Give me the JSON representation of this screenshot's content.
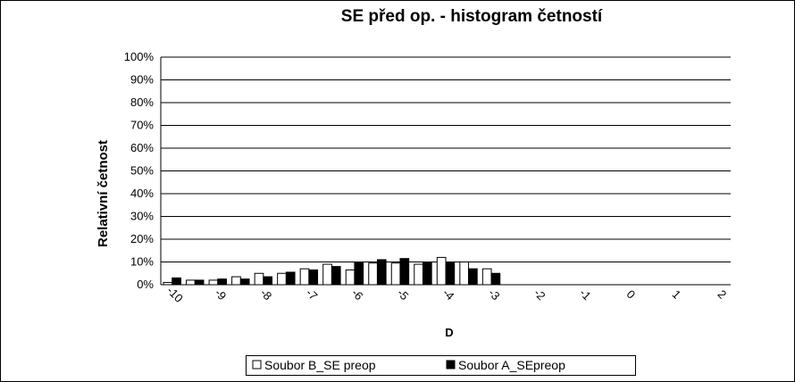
{
  "chart_data": {
    "type": "bar",
    "title": "SE před op. - histogram četností",
    "ylabel": "Relativní četnost",
    "xlabel": "D",
    "categories": [
      "-10",
      null,
      "-9",
      null,
      "-8",
      null,
      "-7",
      null,
      "-6",
      null,
      "-5",
      null,
      "-4",
      null,
      "-3",
      null,
      "-2",
      null,
      "-1",
      null,
      "0",
      null,
      "1",
      null,
      "2"
    ],
    "series": [
      {
        "name": "Soubor B_SE preop",
        "color": "#ffffff",
        "values": [
          1,
          2,
          2,
          3.5,
          5,
          5,
          7,
          9,
          6.5,
          9.5,
          9.5,
          9,
          12,
          10,
          7,
          0,
          0,
          0,
          0,
          0,
          0,
          0,
          0,
          0,
          0
        ]
      },
      {
        "name": "Soubor A_SEpreop",
        "color": "#000000",
        "values": [
          3,
          2,
          2.5,
          2.5,
          3.5,
          5.5,
          6.5,
          8,
          10,
          11,
          11.5,
          10,
          10,
          7,
          5,
          0,
          0,
          0,
          0,
          0,
          0,
          0,
          0,
          0,
          0
        ]
      }
    ],
    "ylim": [
      0,
      100
    ],
    "yticks": [
      {
        "value": 0,
        "label": "0%"
      },
      {
        "value": 10,
        "label": "10%"
      },
      {
        "value": 20,
        "label": "20%"
      },
      {
        "value": 30,
        "label": "30%"
      },
      {
        "value": 40,
        "label": "40%"
      },
      {
        "value": 50,
        "label": "50%"
      },
      {
        "value": 60,
        "label": "60%"
      },
      {
        "value": 70,
        "label": "70%"
      },
      {
        "value": 80,
        "label": "80%"
      },
      {
        "value": 90,
        "label": "90%"
      },
      {
        "value": 100,
        "label": "100%"
      }
    ],
    "grid": true,
    "legend": "bottom"
  }
}
